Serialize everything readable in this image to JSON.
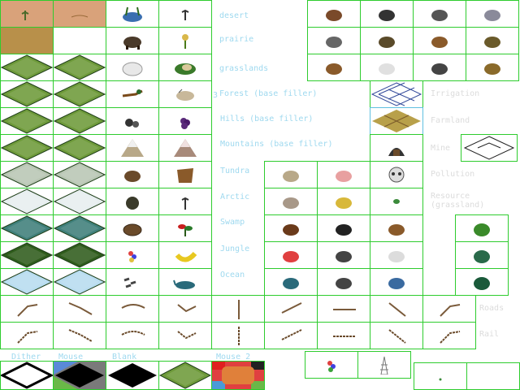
{
  "terrains": [
    "desert",
    "prairie",
    "grasslands",
    "Forest (base filler)",
    "Hills (base filler)",
    "Mountains (base filler)",
    "Tundra",
    "Arctic",
    "Swamp",
    "Jungle",
    "Ocean"
  ],
  "terrain_number_glyph": "3",
  "special_labels": [
    "Irrigation",
    "Farmland",
    "Mine",
    "Pollution",
    "Resource (grassland)",
    "Roads",
    "Rail"
  ],
  "bottom_labels": [
    "Dither",
    "Mouse",
    "Blank",
    "Mouse 2"
  ],
  "colors": {
    "grid": "#2ecc2e",
    "label": "#9fd9ef",
    "ghost": "#dcdcdc",
    "desert": "#d9a27a",
    "prairie": "#b8904a",
    "grass": "#6e9a3a",
    "forest": "#3f6a22",
    "hills": "#8a9a4a",
    "tundra": "#b9c6b4",
    "arctic": "#e7eef0",
    "swamp": "#3f7f7a",
    "jungle": "#2f5c1c",
    "ocean": "#b8dcf0"
  }
}
